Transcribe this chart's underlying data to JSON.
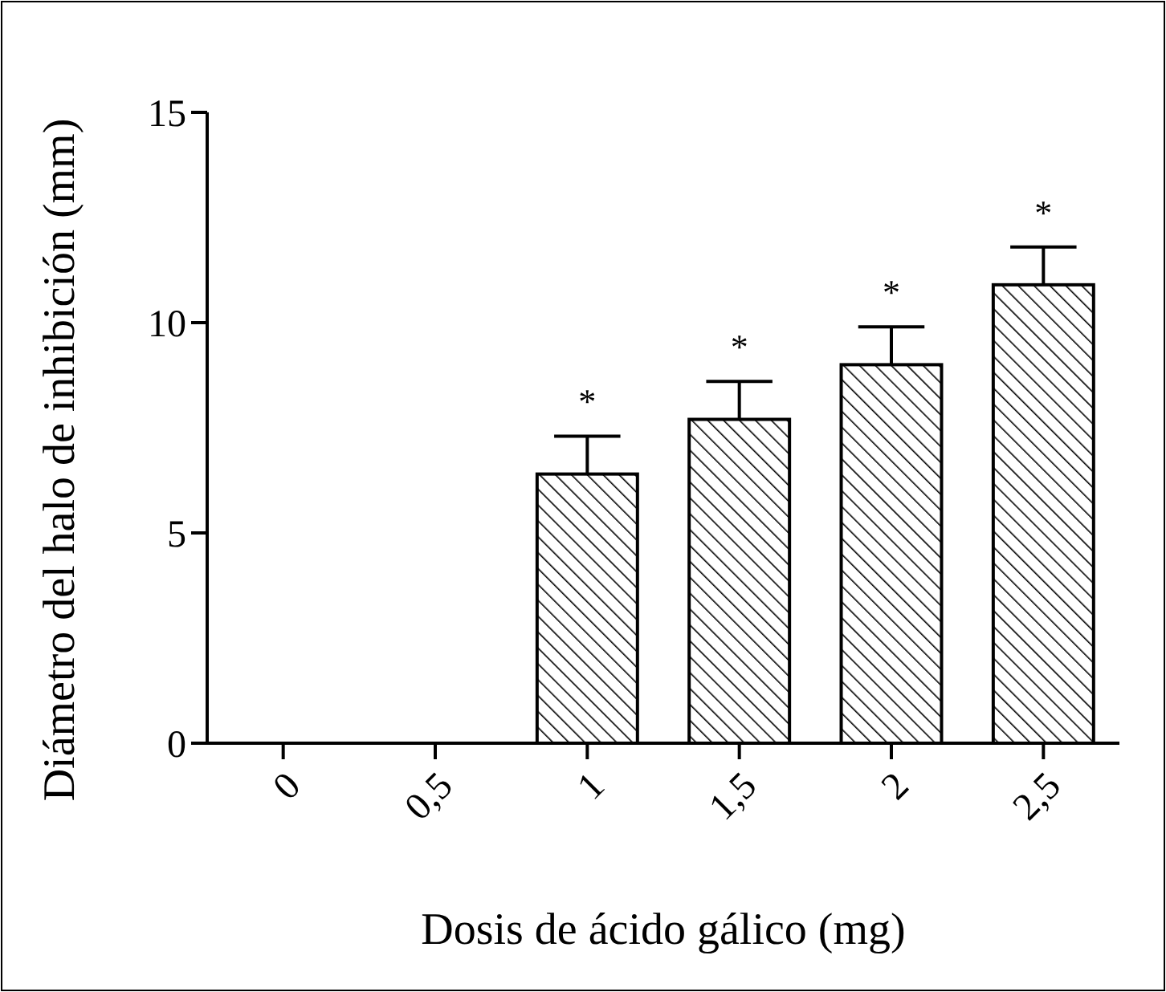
{
  "chart_data": {
    "type": "bar",
    "xlabel": "Dosis de ácido gálico (mg)",
    "ylabel": "Diámetro del halo de inhibición (mm)",
    "categories": [
      "0",
      "0,5",
      "1",
      "1,5",
      "2",
      "2,5"
    ],
    "values": [
      0,
      0,
      6.4,
      7.7,
      9.0,
      10.9
    ],
    "errors": [
      null,
      null,
      [
        6.4,
        7.3
      ],
      [
        7.7,
        8.6
      ],
      [
        9.0,
        9.9
      ],
      [
        10.9,
        11.8
      ]
    ],
    "color": "#000000",
    "ylim": [
      0,
      15
    ],
    "yticks": [
      0,
      5,
      10,
      15
    ],
    "grid": false,
    "annotations": [
      "*",
      "*",
      "*",
      "*"
    ]
  }
}
